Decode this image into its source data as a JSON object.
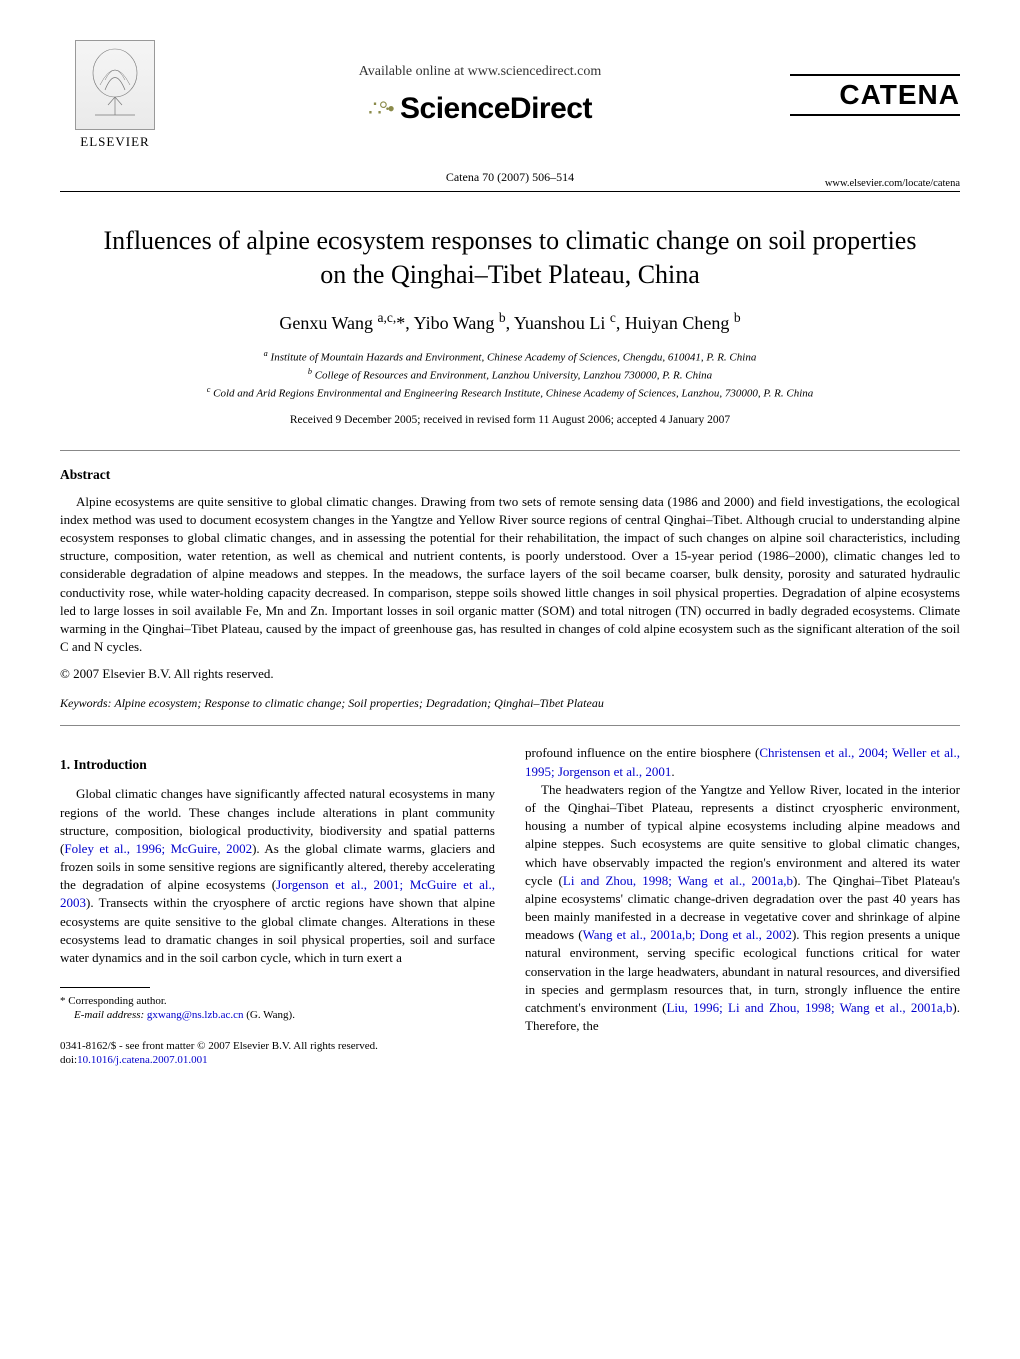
{
  "header": {
    "elsevier_label": "ELSEVIER",
    "available_online": "Available online at www.sciencedirect.com",
    "sciencedirect": "ScienceDirect",
    "catena": "CATENA",
    "journal_line": "Catena 70 (2007) 506–514",
    "journal_url": "www.elsevier.com/locate/catena"
  },
  "title": "Influences of alpine ecosystem responses to climatic change on soil properties on the Qinghai–Tibet Plateau, China",
  "authors_html": "Genxu Wang <sup>a,c,</sup>*, Yibo Wang <sup>b</sup>, Yuanshou Li <sup>c</sup>, Huiyan Cheng <sup>b</sup>",
  "affiliations": {
    "a": "Institute of Mountain Hazards and Environment, Chinese Academy of Sciences, Chengdu, 610041, P. R. China",
    "b": "College of Resources and Environment, Lanzhou University, Lanzhou 730000, P. R. China",
    "c": "Cold and Arid Regions Environmental and Engineering Research Institute, Chinese Academy of Sciences, Lanzhou, 730000, P. R. China"
  },
  "dates": "Received 9 December 2005; received in revised form 11 August 2006; accepted 4 January 2007",
  "abstract_heading": "Abstract",
  "abstract": "Alpine ecosystems are quite sensitive to global climatic changes. Drawing from two sets of remote sensing data (1986 and 2000) and field investigations, the ecological index method was used to document ecosystem changes in the Yangtze and Yellow River source regions of central Qinghai–Tibet. Although crucial to understanding alpine ecosystem responses to global climatic changes, and in assessing the potential for their rehabilitation, the impact of such changes on alpine soil characteristics, including structure, composition, water retention, as well as chemical and nutrient contents, is poorly understood. Over a 15-year period (1986–2000), climatic changes led to considerable degradation of alpine meadows and steppes. In the meadows, the surface layers of the soil became coarser, bulk density, porosity and saturated hydraulic conductivity rose, while water-holding capacity decreased. In comparison, steppe soils showed little changes in soil physical properties. Degradation of alpine ecosystems led to large losses in soil available Fe, Mn and Zn. Important losses in soil organic matter (SOM) and total nitrogen (TN) occurred in badly degraded ecosystems. Climate warming in the Qinghai–Tibet Plateau, caused by the impact of greenhouse gas, has resulted in changes of cold alpine ecosystem such as the significant alteration of the soil C and N cycles.",
  "copyright": "© 2007 Elsevier B.V. All rights reserved.",
  "keywords_label": "Keywords:",
  "keywords": "Alpine ecosystem; Response to climatic change; Soil properties; Degradation; Qinghai–Tibet Plateau",
  "intro_heading": "1. Introduction",
  "left_col": {
    "p1a": "Global climatic changes have significantly affected natural ecosystems in many regions of the world. These changes include alterations in plant community structure, composition, biological productivity, biodiversity and spatial patterns (",
    "ref1": "Foley et al., 1996; McGuire, 2002",
    "p1b": "). As the global climate warms, glaciers and frozen soils in some sensitive regions are significantly altered, thereby accelerating the degradation of alpine ecosystems (",
    "ref2": "Jorgenson et al., 2001; McGuire et al., 2003",
    "p1c": "). Transects within the cryosphere of arctic regions have shown that alpine ecosystems are quite sensitive to the global climate changes. Alterations in these ecosystems lead to dramatic changes in soil physical properties, soil and surface water dynamics and in the soil carbon cycle, which in turn exert a"
  },
  "right_col": {
    "p1a": "profound influence on the entire biosphere (",
    "ref1": "Christensen et al., 2004; Weller et al., 1995; Jorgenson et al., 2001",
    "p1b": ".",
    "p2a": "The headwaters region of the Yangtze and Yellow River, located in the interior of the Qinghai–Tibet Plateau, represents a distinct cryospheric environment, housing a number of typical alpine ecosystems including alpine meadows and alpine steppes. Such ecosystems are quite sensitive to global climatic changes, which have observably impacted the region's environment and altered its water cycle (",
    "ref2": "Li and Zhou, 1998; Wang et al., 2001a,b",
    "p2b": "). The Qinghai–Tibet Plateau's alpine ecosystems' climatic change-driven degradation over the past 40 years has been mainly manifested in a decrease in vegetative cover and shrinkage of alpine meadows (",
    "ref3": "Wang et al., 2001a,b; Dong et al., 2002",
    "p2c": "). This region presents a unique natural environment, serving specific ecological functions critical for water conservation in the large headwaters, abundant in natural resources, and diversified in species and germplasm resources that, in turn, strongly influence the entire catchment's environment (",
    "ref4": "Liu, 1996; Li and Zhou, 1998; Wang et al., 2001a,b",
    "p2d": "). Therefore, the"
  },
  "footnote": {
    "corr": "* Corresponding author.",
    "email_label": "E-mail address:",
    "email": "gxwang@ns.lzb.ac.cn",
    "email_suffix": "(G. Wang)."
  },
  "footer": {
    "line1": "0341-8162/$ - see front matter © 2007 Elsevier B.V. All rights reserved.",
    "doi_label": "doi:",
    "doi": "10.1016/j.catena.2007.01.001"
  }
}
